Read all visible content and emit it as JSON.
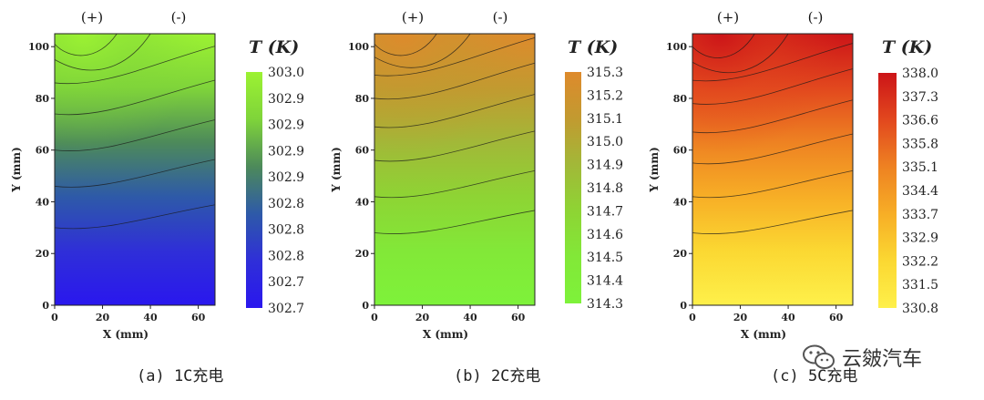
{
  "chart_data": [
    {
      "type": "heatmap",
      "title": "(a) 1C充电",
      "xlabel": "X (mm)",
      "ylabel": "Y (mm)",
      "xlim": [
        0,
        67
      ],
      "ylim": [
        0,
        105
      ],
      "xticks": [
        "0",
        "20",
        "40",
        "60"
      ],
      "yticks": [
        "0",
        "20",
        "40",
        "60",
        "80",
        "100"
      ],
      "tab_labels": [
        "(+)",
        "(-)"
      ],
      "colorbar_title": "T (K)",
      "colorbar_labels": [
        "303.0",
        "302.9",
        "302.9",
        "302.9",
        "302.9",
        "302.8",
        "302.8",
        "302.8",
        "302.7",
        "302.7"
      ],
      "range_K": [
        302.7,
        303.0
      ],
      "colors": [
        "#2a17ee",
        "#2f2fd8",
        "#2e5aa8",
        "#4d8a5a",
        "#7fd43a",
        "#9cf232"
      ],
      "contour_levels_mm_at_x0": [
        30,
        46,
        60,
        74,
        86,
        95,
        101
      ]
    },
    {
      "type": "heatmap",
      "title": "(b) 2C充电",
      "xlabel": "X (mm)",
      "ylabel": "Y (mm)",
      "xlim": [
        0,
        67
      ],
      "ylim": [
        0,
        105
      ],
      "xticks": [
        "0",
        "20",
        "40",
        "60"
      ],
      "yticks": [
        "0",
        "20",
        "40",
        "60",
        "80",
        "100"
      ],
      "tab_labels": [
        "(+)",
        "(-)"
      ],
      "colorbar_title": "T (K)",
      "colorbar_labels": [
        "315.3",
        "315.2",
        "315.1",
        "315.0",
        "314.9",
        "314.8",
        "314.7",
        "314.6",
        "314.5",
        "314.4",
        "314.3"
      ],
      "range_K": [
        314.3,
        315.3
      ],
      "colors": [
        "#7ef23a",
        "#82e838",
        "#8ed434",
        "#a2b838",
        "#c29a30",
        "#de8a2c"
      ],
      "contour_levels_mm_at_x0": [
        28,
        42,
        56,
        69,
        80,
        89,
        96,
        101
      ]
    },
    {
      "type": "heatmap",
      "title": "(c) 5C充电",
      "xlabel": "X (mm)",
      "ylabel": "Y (mm)",
      "xlim": [
        0,
        67
      ],
      "ylim": [
        0,
        105
      ],
      "xticks": [
        "0",
        "20",
        "40",
        "60"
      ],
      "yticks": [
        "0",
        "20",
        "40",
        "60",
        "80",
        "100"
      ],
      "tab_labels": [
        "(+)",
        "(-)"
      ],
      "colorbar_title": "T (K)",
      "colorbar_labels": [
        "338.0",
        "337.3",
        "336.6",
        "335.8",
        "335.1",
        "334.4",
        "333.7",
        "332.9",
        "332.2",
        "331.5",
        "330.8"
      ],
      "range_K": [
        330.8,
        338.0
      ],
      "colors": [
        "#fef04a",
        "#fbd832",
        "#f7ae26",
        "#ee8222",
        "#e2481e",
        "#cc1418"
      ],
      "contour_levels_mm_at_x0": [
        28,
        42,
        55,
        67,
        78,
        87,
        94,
        100
      ]
    }
  ],
  "watermark": {
    "icon": "wechat-icon",
    "text": "云皴汽车"
  }
}
